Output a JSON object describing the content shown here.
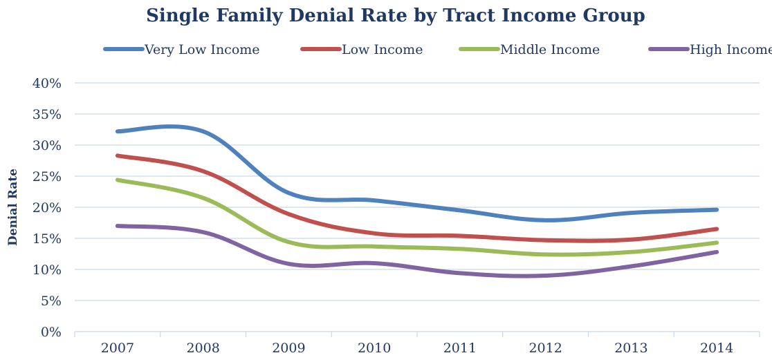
{
  "chart_data": {
    "type": "line",
    "title": "Single Family Denial Rate by Tract Income Group",
    "xlabel": "",
    "ylabel": "Denial Rate",
    "categories": [
      "2007",
      "2008",
      "2009",
      "2010",
      "2011",
      "2012",
      "2013",
      "2014"
    ],
    "y_ticks": [
      "0%",
      "5%",
      "10%",
      "15%",
      "20%",
      "25%",
      "30%",
      "35%",
      "40%"
    ],
    "ylim": [
      0,
      40
    ],
    "grid": true,
    "legend_position": "top",
    "series": [
      {
        "name": "Very Low Income",
        "color": "#4f81bd",
        "values": [
          32.2,
          32.2,
          22.3,
          21.1,
          19.5,
          17.9,
          19.1,
          19.6
        ]
      },
      {
        "name": "Low Income",
        "color": "#c0504d",
        "values": [
          28.3,
          25.8,
          18.9,
          15.8,
          15.4,
          14.7,
          14.8,
          16.5
        ]
      },
      {
        "name": "Middle Income",
        "color": "#9bbb59",
        "values": [
          24.4,
          21.5,
          14.4,
          13.7,
          13.3,
          12.4,
          12.8,
          14.3
        ]
      },
      {
        "name": "High Income",
        "color": "#8064a2",
        "values": [
          17.0,
          16.0,
          10.9,
          11.0,
          9.4,
          9.0,
          10.5,
          12.8
        ]
      }
    ]
  }
}
